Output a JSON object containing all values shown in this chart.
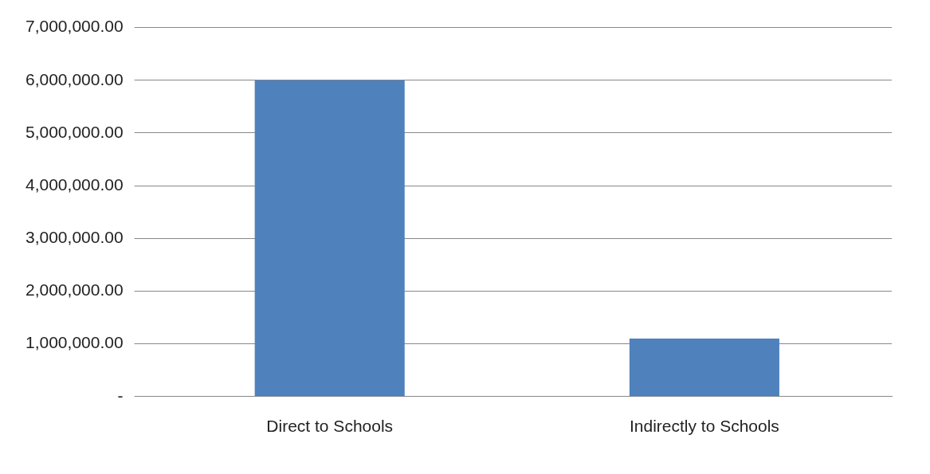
{
  "chart_data": {
    "type": "bar",
    "categories": [
      "Direct to Schools",
      "Indirectly to Schools"
    ],
    "values": [
      6000000,
      1100000
    ],
    "color": "#4f81bd",
    "ylim": [
      0,
      7000000
    ],
    "yticks": [
      {
        "value": 0,
        "label": "-"
      },
      {
        "value": 1000000,
        "label": "1,000,000.00"
      },
      {
        "value": 2000000,
        "label": "2,000,000.00"
      },
      {
        "value": 3000000,
        "label": "3,000,000.00"
      },
      {
        "value": 4000000,
        "label": "4,000,000.00"
      },
      {
        "value": 5000000,
        "label": "5,000,000.00"
      },
      {
        "value": 6000000,
        "label": "6,000,000.00"
      },
      {
        "value": 7000000,
        "label": "7,000,000.00"
      }
    ],
    "grid": "y",
    "legend": false
  }
}
